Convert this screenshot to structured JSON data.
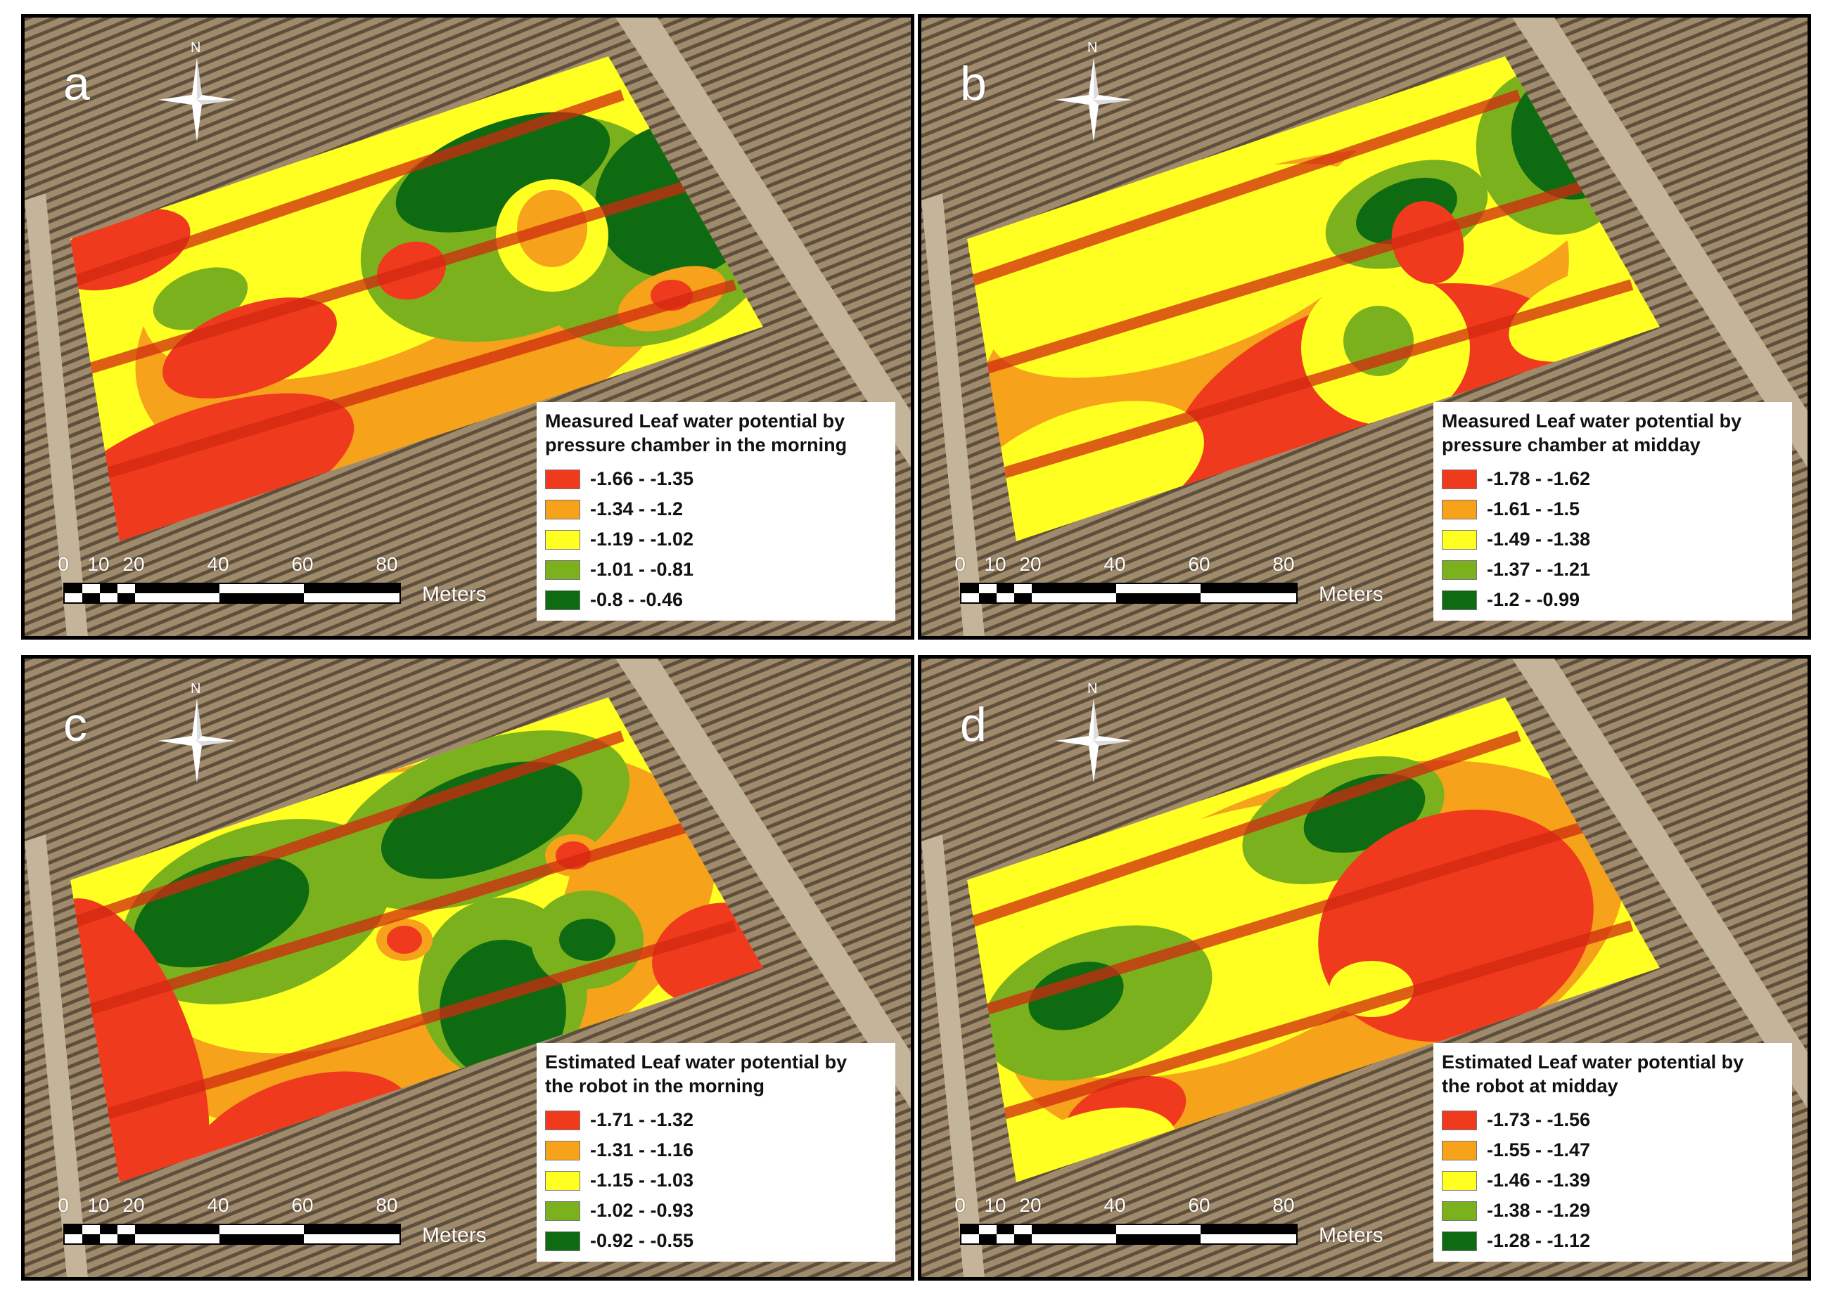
{
  "scale": {
    "ticks": [
      "0",
      "10",
      "20",
      "40",
      "60",
      "80"
    ],
    "units": "Meters"
  },
  "north_label": "N",
  "panels": [
    {
      "id": "a",
      "letter": "a",
      "legend_title_line1": "Measured Leaf water potential by",
      "legend_title_line2": "pressure chamber in the morning",
      "classes": [
        "-1.66 - -1.35",
        "-1.34 - -1.2",
        "-1.19 - -1.02",
        "-1.01 - -0.81",
        "-0.8 - -0.46"
      ]
    },
    {
      "id": "b",
      "letter": "b",
      "legend_title_line1": "Measured Leaf water potential by",
      "legend_title_line2": "pressure chamber at midday",
      "classes": [
        "-1.78 - -1.62",
        "-1.61 - -1.5",
        "-1.49 - -1.38",
        "-1.37 - -1.21",
        "-1.2 - -0.99"
      ]
    },
    {
      "id": "c",
      "letter": "c",
      "legend_title_line1": "Estimated Leaf water potential by",
      "legend_title_line2": "the robot in the morning",
      "classes": [
        "-1.71 - -1.32",
        "-1.31 - -1.16",
        "-1.15 - -1.03",
        "-1.02 - -0.93",
        "-0.92 - -0.55"
      ]
    },
    {
      "id": "d",
      "letter": "d",
      "legend_title_line1": "Estimated Leaf water potential by",
      "legend_title_line2": "the robot at midday",
      "classes": [
        "-1.73 - -1.56",
        "-1.55 - -1.47",
        "-1.46 - -1.39",
        "-1.38 - -1.29",
        "-1.28 - -1.12"
      ]
    }
  ],
  "class_colors": [
    "#f03a1e",
    "#f7a21b",
    "#ffff22",
    "#7cb11e",
    "#0f6b12"
  ]
}
